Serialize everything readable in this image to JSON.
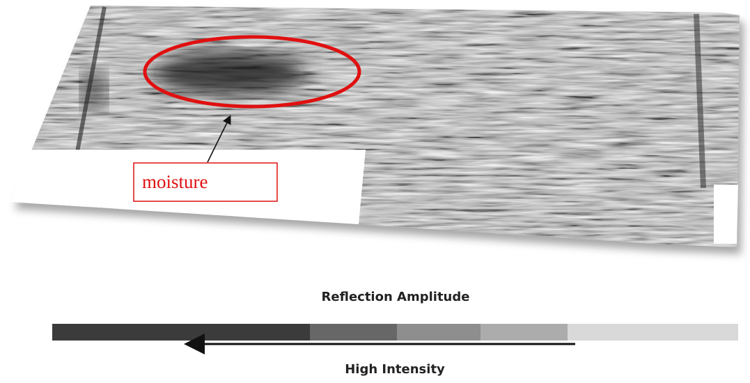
{
  "annotation": {
    "label": "moisture"
  },
  "scale": {
    "title": "Reflection Amplitude",
    "direction_label": "High Intensity"
  }
}
